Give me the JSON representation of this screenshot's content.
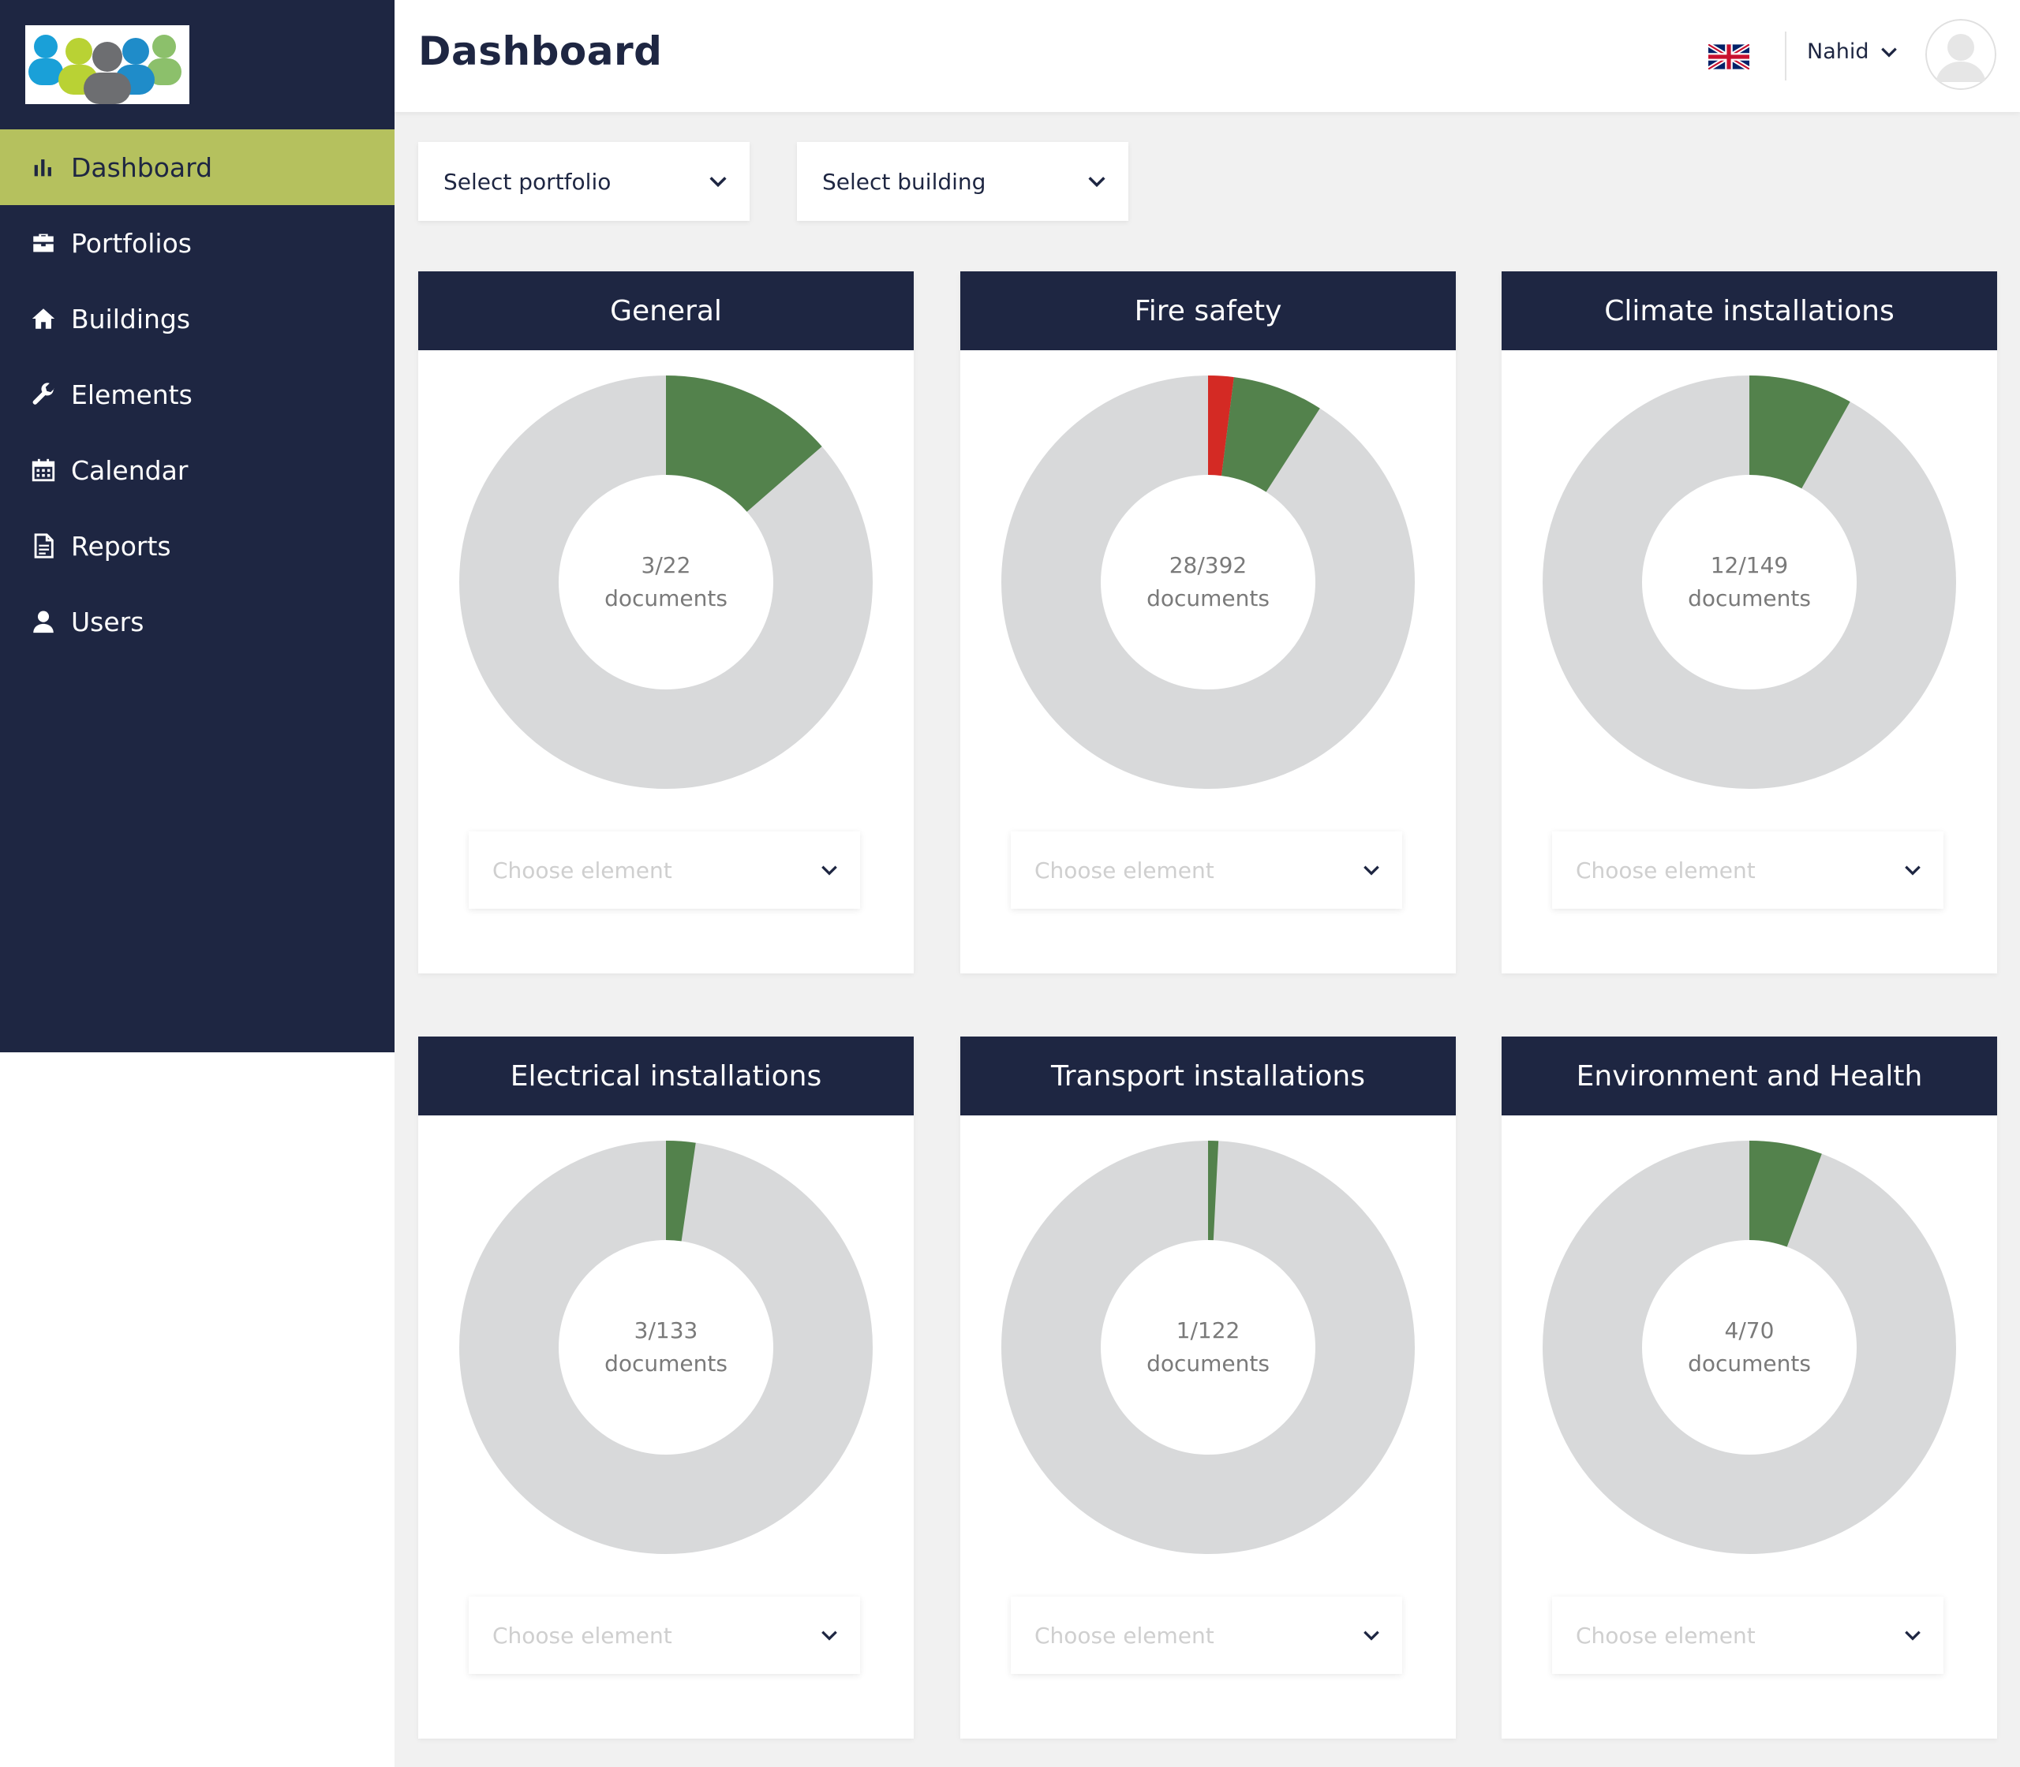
{
  "colors": {
    "sidebar_bg": "#1e2642",
    "active_bg": "#b5c15e",
    "donut_track": "#d8d9da",
    "donut_green": "#53824c",
    "donut_red": "#d42a24"
  },
  "sidebar": {
    "items": [
      {
        "label": "Dashboard",
        "icon": "bar-chart-icon",
        "active": true
      },
      {
        "label": "Portfolios",
        "icon": "briefcase-icon",
        "active": false
      },
      {
        "label": "Buildings",
        "icon": "home-icon",
        "active": false
      },
      {
        "label": "Elements",
        "icon": "wrench-icon",
        "active": false
      },
      {
        "label": "Calendar",
        "icon": "calendar-icon",
        "active": false
      },
      {
        "label": "Reports",
        "icon": "document-icon",
        "active": false
      },
      {
        "label": "Users",
        "icon": "user-icon",
        "active": false
      }
    ]
  },
  "header": {
    "title": "Dashboard",
    "language_icon": "uk-flag-icon",
    "user_name": "Nahid"
  },
  "filters": {
    "portfolio": "Select portfolio",
    "building": "Select building"
  },
  "cards": [
    {
      "title": "General",
      "count": "3/22",
      "unit": "documents",
      "green": 0.136,
      "red": 0,
      "select_placeholder": "Choose element"
    },
    {
      "title": "Fire safety",
      "count": "28/392",
      "unit": "documents",
      "green": 0.071,
      "red": 0.02,
      "select_placeholder": "Choose element"
    },
    {
      "title": "Climate installations",
      "count": "12/149",
      "unit": "documents",
      "green": 0.081,
      "red": 0,
      "select_placeholder": "Choose element"
    },
    {
      "title": "Electrical installations",
      "count": "3/133",
      "unit": "documents",
      "green": 0.023,
      "red": 0,
      "select_placeholder": "Choose element"
    },
    {
      "title": "Transport installations",
      "count": "1/122",
      "unit": "documents",
      "green": 0.008,
      "red": 0,
      "select_placeholder": "Choose element"
    },
    {
      "title": "Environment and Health",
      "count": "4/70",
      "unit": "documents",
      "green": 0.057,
      "red": 0,
      "select_placeholder": "Choose element"
    }
  ]
}
